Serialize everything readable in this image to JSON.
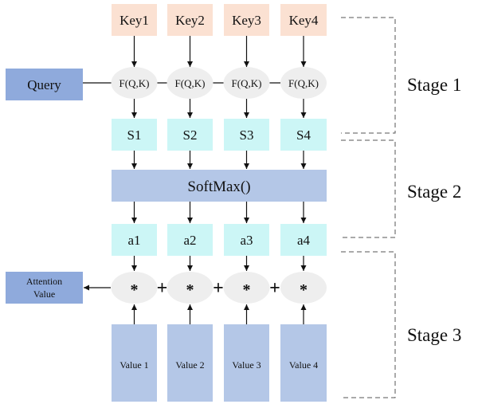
{
  "keys": [
    "Key1",
    "Key2",
    "Key3",
    "Key4"
  ],
  "query": "Query",
  "f_label": "F(Q,K)",
  "scores": [
    "S1",
    "S2",
    "S3",
    "S4"
  ],
  "softmax": "SoftMax()",
  "weights": [
    "a1",
    "a2",
    "a3",
    "a4"
  ],
  "multiply": "*",
  "plus": "+",
  "values": [
    "Value 1",
    "Value 2",
    "Value 3",
    "Value 4"
  ],
  "attention_value": [
    "Attention",
    "Value"
  ],
  "stages": [
    "Stage 1",
    "Stage 2",
    "Stage 3"
  ],
  "colors": {
    "key_fill": "#fbe1d2",
    "query_fill": "#8faadc",
    "ellipse_fill": "#eeeeee",
    "score_fill": "#ccf6f6",
    "softmax_fill": "#b4c7e7",
    "value_fill": "#b4c7e7",
    "attention_fill": "#8faadc"
  }
}
